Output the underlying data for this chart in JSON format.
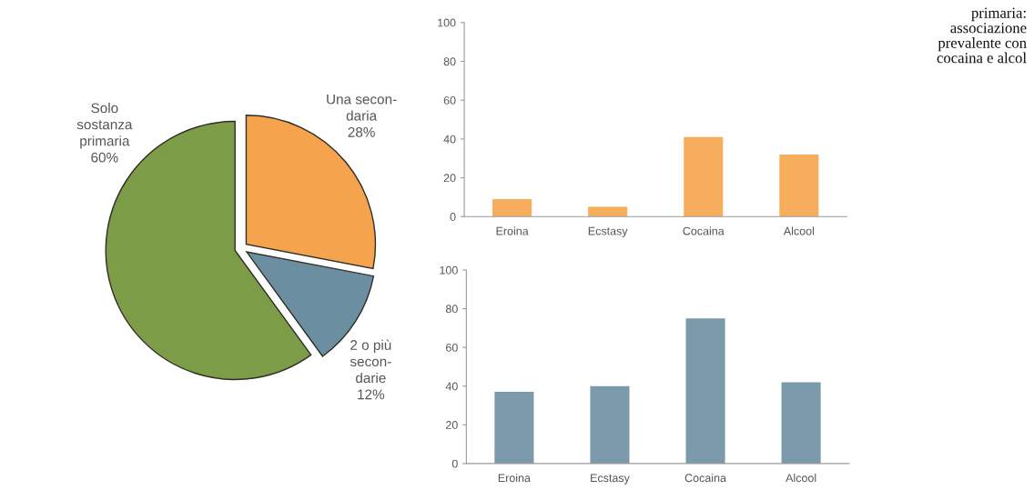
{
  "chart_data": [
    {
      "type": "pie",
      "categories": [
        "Una secon-\ndaria",
        "2 o più\nsecon-\ndarie",
        "Solo\nsostanza\nprimaria"
      ],
      "values": [
        28,
        12,
        60
      ],
      "colors": [
        "#f6a34e",
        "#6b8ea0",
        "#7d9c47"
      ],
      "value_labels": [
        "28%",
        "12%",
        "60%"
      ]
    },
    {
      "type": "bar",
      "categories": [
        "Eroina",
        "Ecstasy",
        "Cocaina",
        "Alcool"
      ],
      "values": [
        9,
        5,
        41,
        32
      ],
      "color": "#f6ad5c",
      "ylim": [
        0,
        100
      ],
      "yticks": [
        0,
        20,
        40,
        60,
        80,
        100
      ]
    },
    {
      "type": "bar",
      "categories": [
        "Eroina",
        "Ecstasy",
        "Cocaina",
        "Alcool"
      ],
      "values": [
        37,
        40,
        75,
        42
      ],
      "color": "#7b9bac",
      "ylim": [
        0,
        100
      ],
      "yticks": [
        0,
        20,
        40,
        60,
        80,
        100
      ]
    },
    {
      "type": "other",
      "annotations": [
        "primaria:\nassociazione\nprevalente con\ncocaina e alcol"
      ]
    }
  ]
}
